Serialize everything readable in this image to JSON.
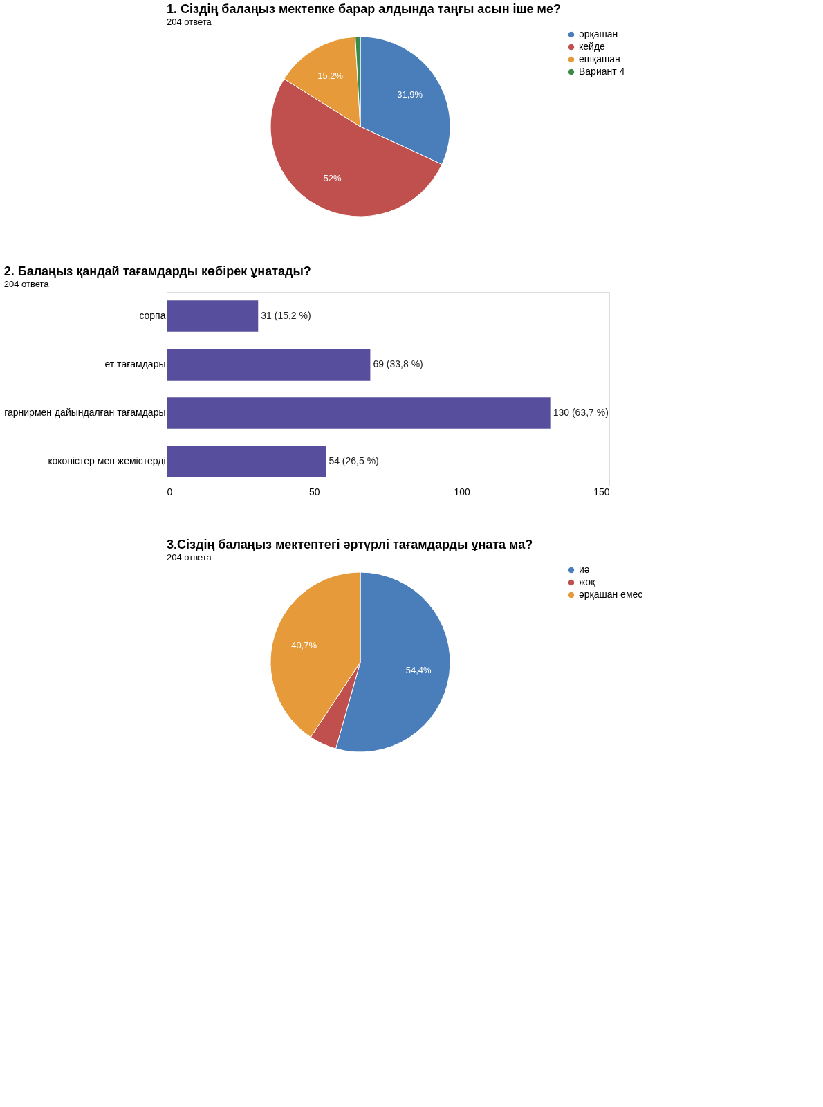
{
  "chart_data": [
    {
      "type": "pie",
      "title": "1. Сіздің балаңыз мектепке барар алдында таңғы асын іше ме?",
      "subtitle": "204 ответа",
      "categories": [
        "әрқашан",
        "кейде",
        "ешқашан",
        "Вариант 4"
      ],
      "values": [
        31.9,
        52,
        15.2,
        0.9
      ],
      "colors": [
        "#4a7ebb",
        "#c0504d",
        "#e69a3a",
        "#3a8a4a"
      ],
      "value_labels": [
        "31,9%",
        "52%",
        "15,2%",
        null
      ],
      "legend": "right"
    },
    {
      "type": "bar",
      "orientation": "horizontal",
      "title": "2. Балаңыз қандай тағамдарды көбірек ұнатады?",
      "subtitle": "204 ответа",
      "categories": [
        "сорпа",
        "ет тағамдары",
        "гарнирмен дайындалған тағамдары",
        "көкөністер мен жемістерді"
      ],
      "values": [
        31,
        69,
        130,
        54
      ],
      "color": "#574f9e",
      "value_labels": [
        "31 (15,2 %)",
        "69 (33,8 %)",
        "130 (63,7 %)",
        "54 (26,5 %)"
      ],
      "xlim": [
        0,
        150
      ],
      "xticks": [
        0,
        50,
        100,
        150
      ],
      "grid": false
    },
    {
      "type": "pie",
      "title": "3.Сіздің балаңыз мектептегі әртүрлі тағамдарды ұната ма?",
      "subtitle": "204 ответа",
      "categories": [
        "иә",
        "жоқ",
        "әрқашан емес"
      ],
      "values": [
        54.4,
        4.9,
        40.7
      ],
      "colors": [
        "#4a7ebb",
        "#c0504d",
        "#e69a3a"
      ],
      "value_labels": [
        "54,4%",
        null,
        "40,7%"
      ],
      "legend": "right"
    }
  ]
}
